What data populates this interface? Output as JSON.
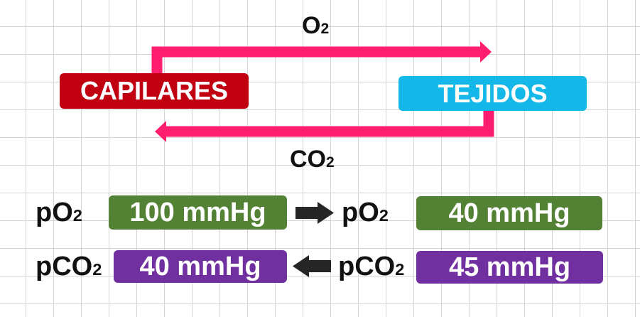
{
  "diagram": {
    "top_arrow_label": {
      "main": "O",
      "sub": "2"
    },
    "bottom_arrow_label": {
      "main": "CO",
      "sub": "2"
    },
    "source_box": "CAPILARES",
    "target_box": "TEJIDOS"
  },
  "pressures": {
    "row_o2": {
      "left_label": {
        "main": "pO",
        "sub": "2"
      },
      "left_value": "100 mmHg",
      "right_label": {
        "main": "pO",
        "sub": "2"
      },
      "right_value": "40 mmHg",
      "direction": "right"
    },
    "row_co2": {
      "left_label": {
        "main": "pCO",
        "sub": "2"
      },
      "left_value": "40 mmHg",
      "right_label": {
        "main": "pCO",
        "sub": "2"
      },
      "right_value": "45 mmHg",
      "direction": "left"
    }
  },
  "colors": {
    "capilares": "#c00010",
    "tejidos": "#14b8e8",
    "flow_arrow": "#ff1f6e",
    "o2_value_box": "#548235",
    "co2_value_box": "#7030a0",
    "gradient_arrow": "#262626",
    "grid": "#d4d4d4"
  }
}
